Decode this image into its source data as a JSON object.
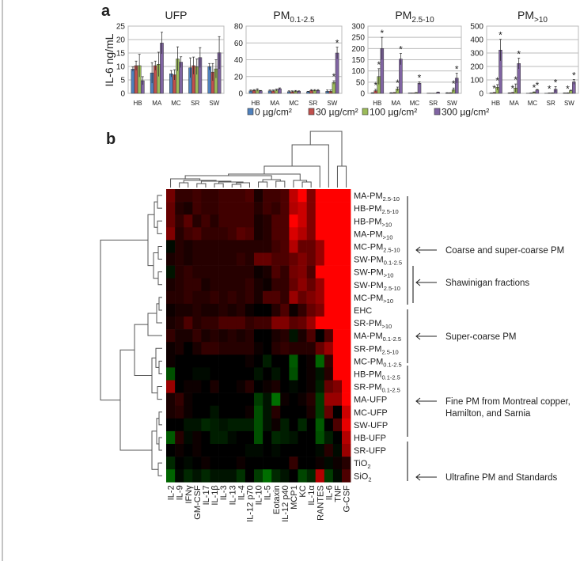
{
  "panel_labels": {
    "a": "a",
    "b": "b"
  },
  "colors": {
    "c0": "#4f81bd",
    "c30": "#c0504d",
    "c100": "#9bbb59",
    "c300": "#8064a2",
    "heat_pos": "#ff0000",
    "heat_neg": "#00c000"
  },
  "chart_data": [
    {
      "type": "bar",
      "title_main": "UFP",
      "title_sub": "",
      "ylabel": "IL-6 ng/mL",
      "categories": [
        "HB",
        "MA",
        "MC",
        "SR",
        "SW"
      ],
      "ylim": [
        0,
        25
      ],
      "yticks": [
        0,
        5,
        10,
        15,
        20,
        25
      ],
      "grid": true,
      "series": [
        {
          "name": "0 µg/cm²",
          "values": [
            9,
            7.6,
            7.3,
            9.5,
            9.9
          ],
          "errors": [
            0.8,
            3.8,
            1.2,
            3.7,
            1.2
          ],
          "stars": [
            false,
            false,
            false,
            false,
            false
          ]
        },
        {
          "name": "30 µg/cm²",
          "values": [
            10.3,
            10.3,
            6.9,
            10.3,
            7.9
          ],
          "errors": [
            1.7,
            1.7,
            1.9,
            3.2,
            3.2
          ],
          "stars": [
            false,
            false,
            false,
            false,
            false
          ]
        },
        {
          "name": "100 µg/cm²",
          "values": [
            10.3,
            10.8,
            12.8,
            9.9,
            9.1
          ],
          "errors": [
            4.2,
            4.5,
            4.5,
            2.9,
            3.4
          ],
          "stars": [
            false,
            false,
            false,
            false,
            false
          ]
        },
        {
          "name": "300 µg/cm²",
          "values": [
            4.7,
            18.7,
            11.6,
            13.3,
            15.1
          ],
          "errors": [
            1.5,
            4,
            2,
            3.7,
            6
          ],
          "stars": [
            false,
            false,
            false,
            false,
            false
          ]
        }
      ]
    },
    {
      "type": "bar",
      "title_main": "PM",
      "title_sub": "0.1-2.5",
      "ylabel": "",
      "categories": [
        "HB",
        "MA",
        "MC",
        "SR",
        "SW"
      ],
      "ylim": [
        0,
        80
      ],
      "yticks": [
        0,
        20,
        40,
        60,
        80
      ],
      "grid": true,
      "series": [
        {
          "name": "0 µg/cm²",
          "values": [
            3,
            3,
            2,
            2,
            2.5
          ],
          "errors": [
            1,
            1,
            1,
            0.5,
            1.5
          ],
          "stars": [
            false,
            false,
            false,
            false,
            false
          ]
        },
        {
          "name": "30 µg/cm²",
          "values": [
            3.5,
            3,
            2,
            3.5,
            2.5
          ],
          "errors": [
            1,
            1,
            1,
            1,
            1.5
          ],
          "stars": [
            false,
            false,
            false,
            false,
            false
          ]
        },
        {
          "name": "100 µg/cm²",
          "values": [
            4,
            4,
            2.5,
            3.5,
            13
          ],
          "errors": [
            1.5,
            1,
            1,
            1,
            2
          ],
          "stars": [
            false,
            false,
            false,
            false,
            true
          ]
        },
        {
          "name": "300 µg/cm²",
          "values": [
            3,
            5.5,
            2.5,
            3.5,
            48
          ],
          "errors": [
            0.5,
            1,
            0.5,
            1,
            7
          ],
          "stars": [
            false,
            false,
            false,
            false,
            true
          ]
        }
      ]
    },
    {
      "type": "bar",
      "title_main": "PM",
      "title_sub": "2.5-10",
      "ylabel": "",
      "categories": [
        "HB",
        "MA",
        "MC",
        "SR",
        "SW"
      ],
      "ylim": [
        0,
        300
      ],
      "yticks": [
        0,
        50,
        100,
        150,
        200,
        250,
        300
      ],
      "grid": true,
      "series": [
        {
          "name": "0 µg/cm²",
          "values": [
            2,
            2,
            2,
            1,
            2
          ],
          "errors": [
            1,
            1,
            0,
            0,
            1
          ],
          "stars": [
            false,
            false,
            false,
            false,
            false
          ]
        },
        {
          "name": "30 µg/cm²",
          "values": [
            12,
            3,
            2,
            1,
            2
          ],
          "errors": [
            6,
            1,
            0,
            0,
            1
          ],
          "stars": [
            true,
            false,
            false,
            false,
            false
          ]
        },
        {
          "name": "100 µg/cm²",
          "values": [
            75,
            20,
            3,
            1,
            16
          ],
          "errors": [
            35,
            8,
            1,
            0,
            8
          ],
          "stars": [
            true,
            true,
            false,
            false,
            true
          ]
        },
        {
          "name": "300 µg/cm²",
          "values": [
            200,
            153,
            45,
            5,
            68
          ],
          "errors": [
            50,
            25,
            6,
            1,
            22
          ],
          "stars": [
            true,
            true,
            true,
            false,
            true
          ]
        }
      ]
    },
    {
      "type": "bar",
      "title_main": "PM",
      "title_sub": ">10",
      "ylabel": "",
      "categories": [
        "HB",
        "MA",
        "MC",
        "SR",
        "SW"
      ],
      "ylim": [
        0,
        500
      ],
      "yticks": [
        0,
        100,
        200,
        300,
        400,
        500
      ],
      "grid": true,
      "series": [
        {
          "name": "0 µg/cm²",
          "values": [
            2,
            3,
            1,
            1,
            2
          ],
          "errors": [
            1,
            1,
            0,
            0,
            1
          ],
          "stars": [
            false,
            false,
            false,
            false,
            false
          ]
        },
        {
          "name": "30 µg/cm²",
          "values": [
            5,
            5,
            2,
            2,
            3
          ],
          "errors": [
            2,
            2,
            1,
            1,
            1
          ],
          "stars": [
            true,
            true,
            false,
            true,
            true
          ]
        },
        {
          "name": "100 µg/cm²",
          "values": [
            45,
            40,
            8,
            3,
            20
          ],
          "errors": [
            20,
            30,
            3,
            1,
            4
          ],
          "stars": [
            true,
            true,
            true,
            false,
            false
          ]
        },
        {
          "name": "300 µg/cm²",
          "values": [
            322,
            222,
            25,
            30,
            85
          ],
          "errors": [
            80,
            40,
            4,
            20,
            18
          ],
          "stars": [
            true,
            true,
            true,
            true,
            true
          ]
        }
      ]
    },
    {
      "type": "heatmap",
      "columns": [
        "IL-2",
        "IL-9",
        "IFNγ",
        "GM-CSF",
        "IL-17",
        "IL-1β",
        "IL-3",
        "IL-13",
        "IL-4",
        "IL-12 p70",
        "IL-10",
        "IL-5",
        "Eotaxin",
        "IL-12 p40",
        "MCP1",
        "KC",
        "IL-1α",
        "RANTES",
        "IL-6",
        "TNF",
        "G-CSF"
      ],
      "rows": [
        {
          "main": "MA-PM",
          "sub": "2.5-10"
        },
        {
          "main": "HB-PM",
          "sub": "2.5-10"
        },
        {
          "main": "HB-PM",
          "sub": ">10"
        },
        {
          "main": "MA-PM",
          "sub": ">10"
        },
        {
          "main": "MC-PM",
          "sub": "2.5-10"
        },
        {
          "main": "SW-PM",
          "sub": "0.1-2.5"
        },
        {
          "main": "SW-PM",
          "sub": ">10"
        },
        {
          "main": "SW-PM",
          "sub": "2.5-10"
        },
        {
          "main": "MC-PM",
          "sub": ">10"
        },
        {
          "main": "EHC",
          "sub": ""
        },
        {
          "main": "SR-PM",
          "sub": ">10"
        },
        {
          "main": "MA-PM",
          "sub": "0.1-2.5"
        },
        {
          "main": "SR-PM",
          "sub": "2.5-10"
        },
        {
          "main": "MC-PM",
          "sub": "0.1-2.5"
        },
        {
          "main": "HB-PM",
          "sub": "0.1-2.5"
        },
        {
          "main": "SR-PM",
          "sub": "0.1-2.5"
        },
        {
          "main": "MA-UFP",
          "sub": ""
        },
        {
          "main": "MC-UFP",
          "sub": ""
        },
        {
          "main": "SW-UFP",
          "sub": ""
        },
        {
          "main": "HB-UFP",
          "sub": ""
        },
        {
          "main": "SR-UFP",
          "sub": ""
        },
        {
          "main": "TiO",
          "sub": "2"
        },
        {
          "main": "SiO",
          "sub": "2"
        }
      ],
      "scale": "relative, green (low) – black – red (high)",
      "values": [
        [
          0.45,
          0.2,
          0.2,
          0.25,
          0.2,
          0.2,
          0.25,
          0.25,
          0.25,
          0.3,
          0.1,
          0.25,
          0.25,
          0.3,
          0.75,
          1,
          0.5,
          1,
          1,
          1,
          1
        ],
        [
          0.4,
          0.15,
          0.1,
          0.25,
          0.2,
          0.2,
          0.25,
          0.25,
          0.25,
          0.25,
          0.15,
          0.25,
          0.2,
          0.3,
          0.7,
          0.8,
          0.5,
          1,
          1,
          1,
          1
        ],
        [
          0.4,
          0.2,
          0.35,
          0.15,
          0.25,
          0.15,
          0.25,
          0.25,
          0.25,
          0.25,
          0.1,
          0.15,
          0.3,
          0.3,
          1,
          0.8,
          0.5,
          1,
          1,
          1,
          1
        ],
        [
          0.5,
          0.15,
          0.25,
          0.3,
          0.2,
          0.2,
          0.2,
          0.25,
          0.35,
          0.3,
          0.1,
          0.15,
          0.3,
          0.3,
          0.85,
          0.7,
          0.5,
          1,
          1,
          1,
          1
        ],
        [
          -0.05,
          0.15,
          0.1,
          0.15,
          0.15,
          0.15,
          0.15,
          0.15,
          0.15,
          0.15,
          0.15,
          0.15,
          0.25,
          0.3,
          0.7,
          0.4,
          0.4,
          0.6,
          1,
          1,
          1
        ],
        [
          0.1,
          0.15,
          0.1,
          0.15,
          0.15,
          0.15,
          0.15,
          0.15,
          0.2,
          0.15,
          0.4,
          0.4,
          0.3,
          0.3,
          0.4,
          0.5,
          0.4,
          0.6,
          1,
          1,
          1
        ],
        [
          -0.1,
          0.15,
          0.2,
          0.15,
          0.15,
          0.15,
          0.15,
          0.15,
          0.15,
          0.15,
          0.05,
          0.1,
          0.3,
          0.2,
          0.45,
          0.5,
          0.3,
          1,
          1,
          1,
          1
        ],
        [
          0.1,
          0.15,
          0.2,
          0.2,
          0.1,
          0.15,
          0.15,
          0.15,
          0.15,
          0.2,
          0.1,
          0.05,
          0.2,
          0.2,
          0.4,
          0.55,
          0.4,
          0.6,
          1,
          1,
          1
        ],
        [
          0.15,
          0.15,
          0.2,
          0.15,
          0.15,
          0.2,
          0.15,
          0.2,
          0.15,
          0.2,
          0.1,
          0.3,
          0.3,
          0.2,
          0.6,
          0.4,
          0.5,
          0.6,
          1,
          1,
          1
        ],
        [
          0.05,
          0.1,
          0.1,
          0.15,
          0.1,
          0.1,
          0.15,
          0.1,
          0.15,
          0.05,
          0,
          0,
          0.15,
          0.3,
          0.05,
          0.2,
          0.4,
          0.5,
          1,
          1,
          1
        ],
        [
          0.1,
          0.15,
          0.3,
          0.15,
          0.2,
          0.2,
          0.3,
          0.3,
          0.3,
          0.2,
          0.25,
          0.25,
          0.5,
          0.5,
          0.35,
          0.4,
          0.6,
          1,
          1,
          1,
          1
        ],
        [
          0.2,
          0.1,
          0.1,
          0.2,
          0.1,
          0.15,
          0.1,
          0.15,
          0.1,
          0.15,
          0,
          0,
          0.1,
          0.15,
          -0.1,
          0.1,
          0.3,
          0,
          0.3,
          1,
          1
        ],
        [
          0.05,
          0.1,
          0,
          0.1,
          0.2,
          0.2,
          0.15,
          0.15,
          0.15,
          0.15,
          0.05,
          0,
          0.15,
          0.2,
          0.15,
          0.15,
          0.15,
          0.4,
          0.6,
          1,
          1
        ],
        [
          0.05,
          0,
          0,
          0,
          0,
          0,
          0,
          0,
          0,
          0.05,
          0,
          -0.15,
          0,
          0,
          -0.45,
          0,
          0.05,
          -0.5,
          0.2,
          1,
          1
        ],
        [
          -0.4,
          0,
          0,
          -0.05,
          -0.05,
          0,
          0,
          0,
          0,
          0,
          -0.1,
          0,
          -0.1,
          0,
          -0.4,
          0,
          0.05,
          -0.1,
          0.15,
          1,
          1
        ],
        [
          0.6,
          0,
          0.05,
          0.05,
          0,
          0.1,
          0,
          0,
          0.05,
          0.15,
          0,
          0.05,
          0.1,
          0,
          -0.05,
          0,
          0.05,
          -0.15,
          0.4,
          0.5,
          1
        ],
        [
          0.1,
          0.2,
          0.05,
          0,
          0,
          0,
          0,
          0,
          0,
          0,
          -0.3,
          -0.1,
          -0.55,
          0.05,
          0,
          0.05,
          0.15,
          -0.3,
          0.6,
          0.6,
          1
        ],
        [
          0.1,
          0.15,
          0.05,
          0,
          0,
          -0.1,
          0,
          0,
          0,
          0.05,
          -0.4,
          -0.1,
          0.15,
          0,
          0,
          0,
          0.1,
          -0.3,
          0.4,
          0,
          0.8
        ],
        [
          0,
          0,
          -0.1,
          -0.1,
          -0.2,
          -0.15,
          -0.1,
          -0.15,
          -0.15,
          -0.15,
          -0.4,
          -0.1,
          0.05,
          -0.15,
          0,
          -0.2,
          0,
          -0.45,
          0,
          0.3,
          0.9
        ],
        [
          -0.45,
          0.15,
          -0.05,
          0.05,
          0,
          -0.15,
          -0.15,
          -0.05,
          0,
          0,
          -0.4,
          0,
          -0.2,
          -0.15,
          -0.1,
          0,
          0,
          -0.4,
          -0.15,
          0,
          0.7
        ],
        [
          0,
          0.05,
          0,
          0.05,
          0,
          0,
          0,
          0,
          0,
          -0.05,
          -0.05,
          0,
          -0.05,
          0,
          0,
          0,
          0,
          -0.05,
          0.15,
          -0.05,
          0.6
        ],
        [
          -0.2,
          0,
          -0.05,
          0,
          0.05,
          0,
          0,
          0,
          0.05,
          0,
          0,
          0,
          0,
          0,
          0.2,
          0,
          0,
          0.05,
          -0.05,
          0.05,
          0.15
        ],
        [
          -0.5,
          -0.05,
          -0.2,
          -0.1,
          -0.2,
          -0.1,
          -0.1,
          -0.1,
          -0.25,
          0,
          -0.3,
          -0.55,
          -0.2,
          -0.1,
          0,
          -0.35,
          -0.2,
          0.7,
          -0.3,
          -0.05,
          0.3
        ]
      ]
    }
  ],
  "annotations": [
    {
      "lines": [
        "Coarse and super-coarse PM"
      ]
    },
    {
      "lines": [
        "Shawinigan fractions"
      ]
    },
    {
      "lines": [
        "Super-coarse PM"
      ]
    },
    {
      "lines": [
        "Fine PM from Montreal copper,",
        "Hamilton, and Sarnia"
      ]
    },
    {
      "lines": [
        "Ultrafine PM and Standards"
      ]
    }
  ]
}
